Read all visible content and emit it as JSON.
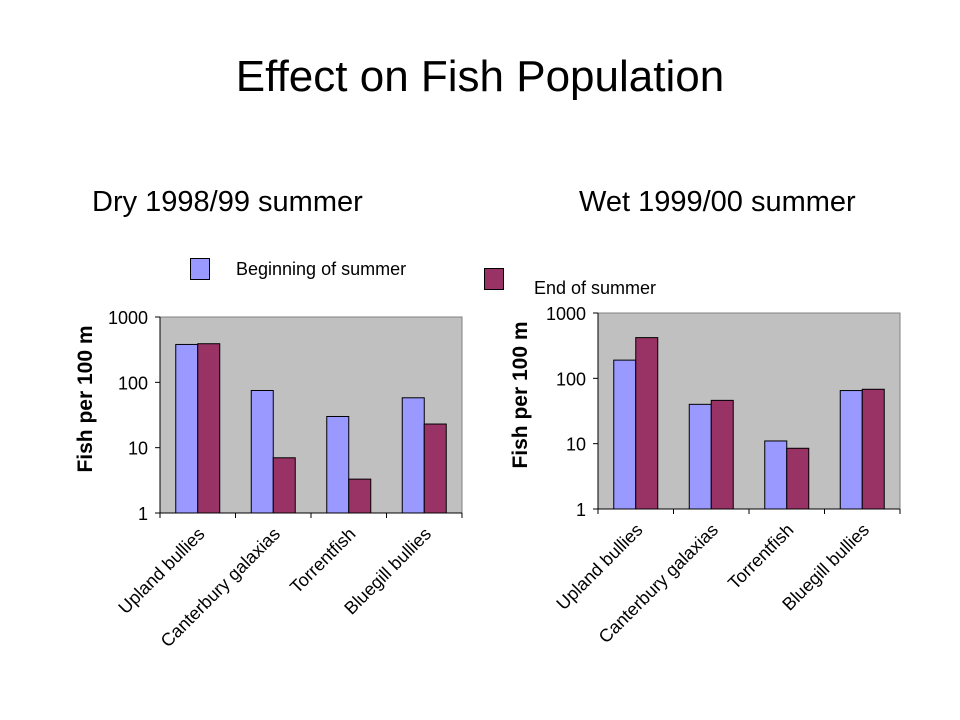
{
  "title": "Effect on Fish Population",
  "legend": [
    {
      "label": "Beginning of summer",
      "color": "#9999ff"
    },
    {
      "label": "End of summer",
      "color": "#993366"
    }
  ],
  "chart_data": [
    {
      "type": "bar",
      "subtitle": "Dry 1998/99 summer",
      "ylabel": "Fish per 100 m",
      "yscale": "log",
      "ylim": [
        1,
        1000
      ],
      "yticks": [
        "1",
        "10",
        "100",
        "1000"
      ],
      "categories": [
        "Upland bullies",
        "Canterbury galaxias",
        "Torrentfish",
        "Bluegill bullies"
      ],
      "series": [
        {
          "name": "Beginning of summer",
          "values": [
            380,
            75,
            30,
            58
          ]
        },
        {
          "name": "End of summer",
          "values": [
            390,
            7,
            3.3,
            23
          ]
        }
      ],
      "grid": false,
      "plot_background": "#c0c0c0"
    },
    {
      "type": "bar",
      "subtitle": "Wet 1999/00 summer",
      "ylabel": "Fish per 100 m",
      "yscale": "log",
      "ylim": [
        1,
        1000
      ],
      "yticks": [
        "1",
        "10",
        "100",
        "1000"
      ],
      "categories": [
        "Upland bullies",
        "Canterbury galaxias",
        "Torrentfish",
        "Bluegill bullies"
      ],
      "series": [
        {
          "name": "Beginning of summer",
          "values": [
            190,
            40,
            11,
            65
          ]
        },
        {
          "name": "End of summer",
          "values": [
            420,
            46,
            8.5,
            68
          ]
        }
      ],
      "grid": false,
      "plot_background": "#c0c0c0"
    }
  ]
}
